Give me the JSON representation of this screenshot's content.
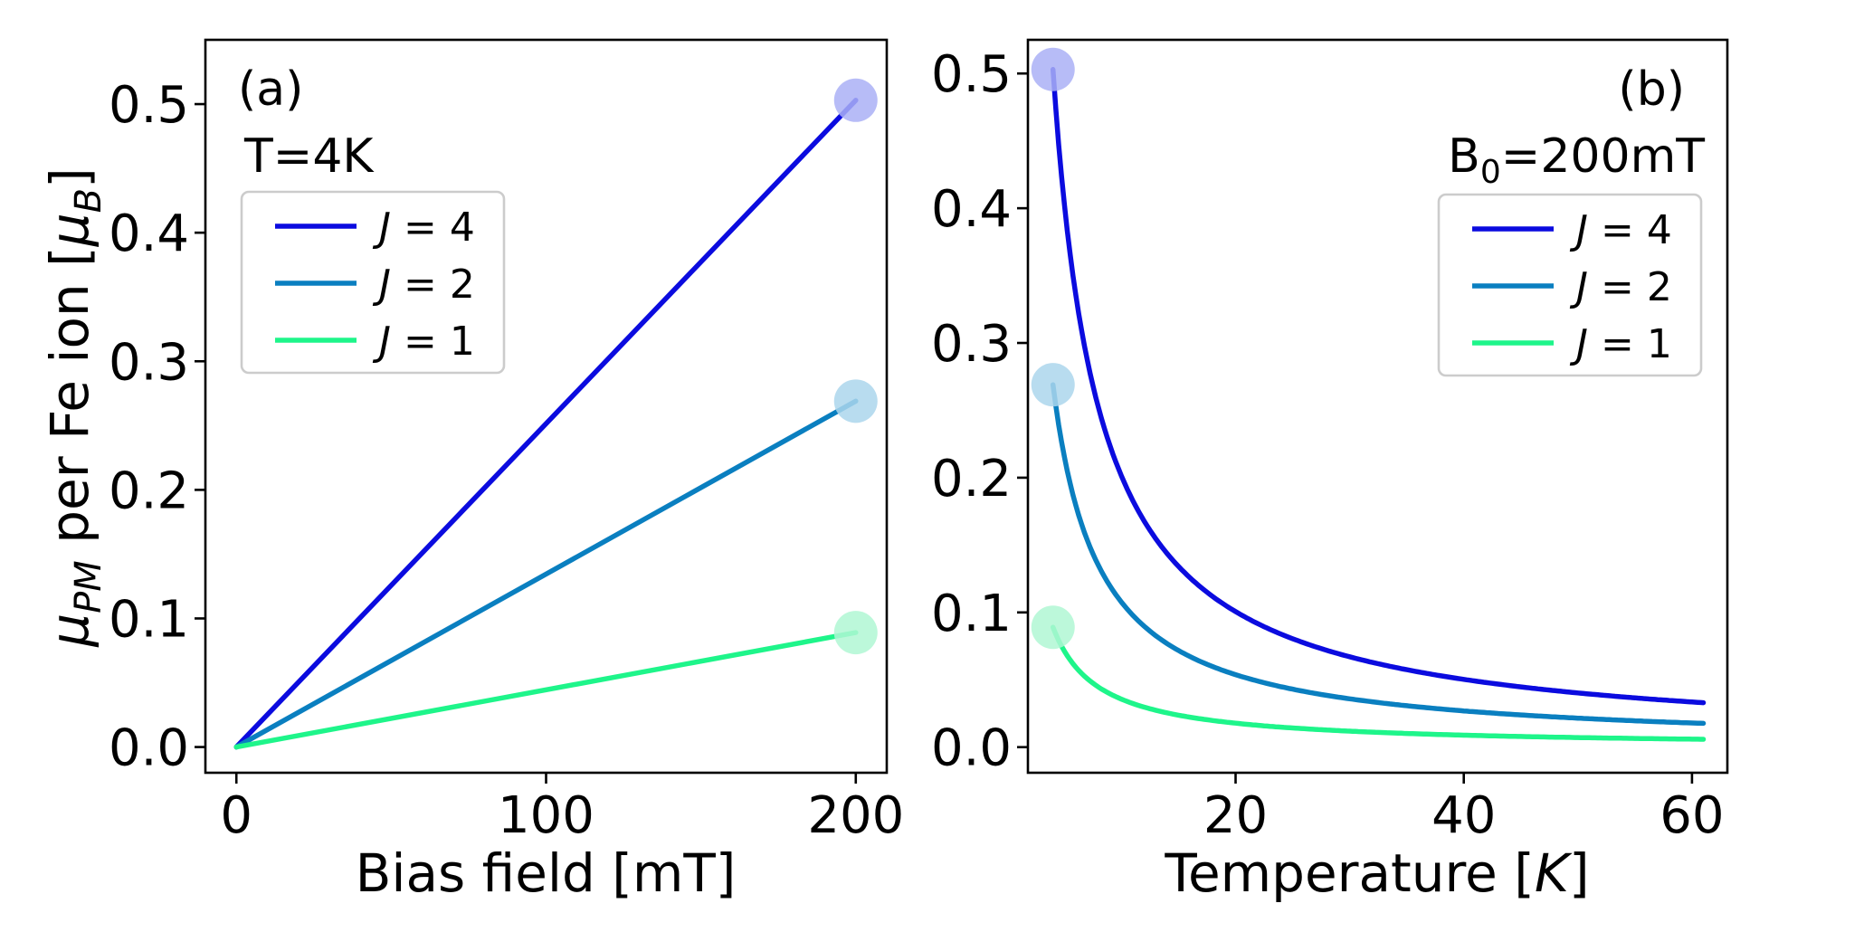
{
  "chart_data": [
    {
      "panel": "(a)",
      "type": "line",
      "annotation": "T=4K",
      "xlabel": "Bias field [mT]",
      "ylabel": "per Fe ion",
      "ylabel_symbol": "μPM",
      "ylabel_unit": "μB",
      "xlim": [
        -10,
        210
      ],
      "ylim": [
        -0.02,
        0.55
      ],
      "xticks": [
        0,
        100,
        200
      ],
      "xtick_labels": [
        "0",
        "100",
        "200"
      ],
      "yticks": [
        0.0,
        0.1,
        0.2,
        0.3,
        0.4,
        0.5
      ],
      "ytick_labels": [
        "0.0",
        "0.1",
        "0.2",
        "0.3",
        "0.4",
        "0.5"
      ],
      "legend": {
        "position": "upper-left"
      },
      "series": [
        {
          "name": "J = 4",
          "J": "4",
          "color": "#0b0bdf",
          "x": [
            0,
            200
          ],
          "y": [
            0.0,
            0.503
          ],
          "marker": {
            "x": 200,
            "y": 0.503,
            "color": "#aab0f6"
          }
        },
        {
          "name": "J = 2",
          "J": "2",
          "color": "#0a7fc0",
          "x": [
            0,
            200
          ],
          "y": [
            0.0,
            0.269
          ],
          "marker": {
            "x": 200,
            "y": 0.269,
            "color": "#acd6ec"
          }
        },
        {
          "name": "J = 1",
          "J": "1",
          "color": "#1ef58a",
          "x": [
            0,
            200
          ],
          "y": [
            0.0,
            0.089
          ],
          "marker": {
            "x": 200,
            "y": 0.089,
            "color": "#b0f7d4"
          }
        }
      ]
    },
    {
      "panel": "(b)",
      "type": "line",
      "annotation": "B0=200mT",
      "annotation_base": "B",
      "annotation_sub": "0",
      "annotation_rest": "=200mT",
      "xlabel": "Temperature",
      "xlabel_unit": "K",
      "xlim": [
        1.8,
        63.1
      ],
      "ylim": [
        -0.019,
        0.525
      ],
      "xticks": [
        20,
        40,
        60
      ],
      "xtick_labels": [
        "20",
        "40",
        "60"
      ],
      "yticks": [
        0.0,
        0.1,
        0.2,
        0.3,
        0.4,
        0.5
      ],
      "ytick_labels": [
        "0.0",
        "0.1",
        "0.2",
        "0.3",
        "0.4",
        "0.5"
      ],
      "legend": {
        "position": "upper-right"
      },
      "series": [
        {
          "name": "J = 4",
          "J": "4",
          "color": "#0b0bdf",
          "x": [
            4,
            5,
            6,
            8,
            10,
            15,
            20,
            30,
            40,
            50,
            61
          ],
          "y": [
            0.503,
            0.402,
            0.335,
            0.251,
            0.201,
            0.134,
            0.101,
            0.067,
            0.05,
            0.04,
            0.033
          ],
          "marker": {
            "x": 4,
            "y": 0.503,
            "color": "#aab0f6"
          }
        },
        {
          "name": "J = 2",
          "J": "2",
          "color": "#0a7fc0",
          "x": [
            4,
            5,
            6,
            8,
            10,
            15,
            20,
            30,
            40,
            50,
            61
          ],
          "y": [
            0.269,
            0.215,
            0.18,
            0.135,
            0.108,
            0.072,
            0.054,
            0.036,
            0.027,
            0.022,
            0.018
          ],
          "marker": {
            "x": 4,
            "y": 0.269,
            "color": "#acd6ec"
          }
        },
        {
          "name": "J = 1",
          "J": "1",
          "color": "#1ef58a",
          "x": [
            4,
            5,
            6,
            8,
            10,
            15,
            20,
            30,
            40,
            50,
            61
          ],
          "y": [
            0.089,
            0.071,
            0.059,
            0.045,
            0.036,
            0.024,
            0.018,
            0.012,
            0.009,
            0.007,
            0.006
          ],
          "marker": {
            "x": 4,
            "y": 0.089,
            "color": "#b0f7d4"
          }
        }
      ]
    }
  ]
}
